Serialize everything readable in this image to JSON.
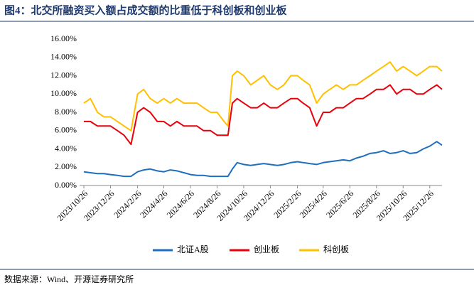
{
  "chart_data": {
    "type": "line",
    "title": "图4：北交所融资买入额占成交额的比重低于科创板和创业板",
    "source": "数据来源：Wind、开源证券研究所",
    "x": [
      "2023/10/26",
      "2023/11/10",
      "2023/11/26",
      "2023/12/11",
      "2023/12/26",
      "2024/1/11",
      "2024/1/26",
      "2024/2/11",
      "2024/2/26",
      "2024/3/11",
      "2024/3/26",
      "2024/4/11",
      "2024/4/26",
      "2024/5/11",
      "2024/5/26",
      "2024/6/11",
      "2024/6/26",
      "2024/7/11",
      "2024/7/26",
      "2024/8/11",
      "2024/8/26",
      "2024/9/11",
      "2024/9/20",
      "2024/9/30",
      "2024/10/11",
      "2024/10/26",
      "2024/11/11",
      "2024/11/26",
      "2024/12/11",
      "2024/12/26",
      "2025/1/11",
      "2025/1/26",
      "2025/2/11",
      "2025/2/26",
      "2025/3/11",
      "2025/3/26",
      "2025/4/11",
      "2025/4/26",
      "2025/5/11",
      "2025/5/26",
      "2025/6/11",
      "2025/6/26",
      "2025/7/11",
      "2025/7/26",
      "2025/8/11",
      "2025/8/26",
      "2025/9/11",
      "2025/9/26",
      "2025/10/11",
      "2025/10/26",
      "2025/11/11",
      "2025/11/26",
      "2025/12/11",
      "2025/12/26",
      "2026/1/11",
      "2026/1/23"
    ],
    "series": [
      {
        "name": "北证A股",
        "color": "#1f6fbf",
        "values": [
          1.5,
          1.4,
          1.3,
          1.3,
          1.2,
          1.1,
          1.0,
          1.0,
          1.5,
          1.7,
          1.8,
          1.6,
          1.5,
          1.7,
          1.6,
          1.4,
          1.2,
          1.1,
          1.1,
          1.0,
          1.0,
          1.0,
          1.0,
          1.8,
          2.5,
          2.3,
          2.2,
          2.3,
          2.4,
          2.3,
          2.2,
          2.3,
          2.5,
          2.6,
          2.5,
          2.4,
          2.3,
          2.5,
          2.6,
          2.7,
          2.8,
          2.7,
          3.0,
          3.2,
          3.5,
          3.6,
          3.8,
          3.5,
          3.6,
          3.8,
          3.5,
          3.6,
          4.0,
          4.3,
          4.8,
          4.4
        ]
      },
      {
        "name": "创业板",
        "color": "#e8000b",
        "values": [
          7,
          7,
          6.5,
          6.5,
          6.5,
          6,
          5.5,
          4.5,
          8,
          8.5,
          8,
          7,
          7,
          6.5,
          7,
          6.5,
          6.5,
          6.5,
          6,
          6,
          5.5,
          5.5,
          5.5,
          9,
          9.5,
          9,
          8.5,
          8.5,
          9,
          8.5,
          8.5,
          9,
          9.5,
          9.5,
          9,
          8.5,
          6.5,
          8,
          8,
          8.5,
          8.5,
          9,
          9.5,
          9.5,
          10,
          10.5,
          10.5,
          11,
          10,
          10.5,
          10.5,
          10,
          10,
          10.5,
          11,
          10.5
        ]
      },
      {
        "name": "科创板",
        "color": "#ffc000",
        "values": [
          9,
          9.5,
          8,
          7.5,
          7.5,
          7,
          6.5,
          6,
          10,
          10.5,
          9.5,
          9,
          9.5,
          9,
          9.5,
          9,
          9,
          9,
          8.5,
          8,
          8,
          7,
          6.5,
          12,
          12.5,
          12,
          11,
          11.5,
          12,
          11,
          10.5,
          11,
          12,
          12,
          11.5,
          11,
          9,
          10,
          10.5,
          11,
          10.5,
          11,
          11,
          11.5,
          12,
          12.5,
          13,
          13.5,
          12.5,
          13,
          12.5,
          12,
          12.5,
          13,
          13,
          12.5
        ]
      }
    ],
    "xlim": [
      "2023/10/26",
      "2026/1/23"
    ],
    "xticks": [
      "2023/10/26",
      "2023/12/26",
      "2024/2/26",
      "2024/4/26",
      "2024/6/26",
      "2024/8/26",
      "2024/10/26",
      "2024/12/26",
      "2025/2/26",
      "2025/4/26",
      "2025/6/26",
      "2025/8/26",
      "2025/10/26",
      "2025/12/26"
    ],
    "ylim": [
      0,
      16
    ],
    "yticks": [
      {
        "value": 0,
        "label": "0.00%"
      },
      {
        "value": 2,
        "label": "2.00%"
      },
      {
        "value": 4,
        "label": "4.00%"
      },
      {
        "value": 6,
        "label": "6.00%"
      },
      {
        "value": 8,
        "label": "8.00%"
      },
      {
        "value": 10,
        "label": "10.00%"
      },
      {
        "value": 12,
        "label": "12.00%"
      },
      {
        "value": 14,
        "label": "14.00%"
      },
      {
        "value": 16,
        "label": "16.00%"
      }
    ],
    "grid": false,
    "legend": "bottom"
  }
}
